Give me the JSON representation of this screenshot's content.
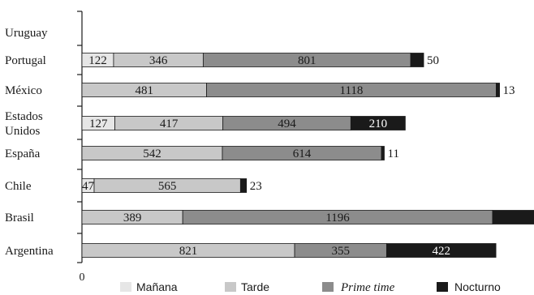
{
  "chart_data": {
    "type": "bar",
    "orientation": "horizontal",
    "stacked": true,
    "categories": [
      "Uruguay",
      "Portugal",
      "México",
      "Estados Unidos",
      "España",
      "Chile",
      "Brasil",
      "Argentina"
    ],
    "category_display": [
      [
        "Uruguay"
      ],
      [
        "Portugal"
      ],
      [
        "México"
      ],
      [
        "Estados",
        "Unidos"
      ],
      [
        "España"
      ],
      [
        "Chile"
      ],
      [
        "Brasil"
      ],
      [
        "Argentina"
      ]
    ],
    "series": [
      {
        "name": "Mañana",
        "color": "#e6e6e6",
        "values": [
          0,
          122,
          0,
          127,
          0,
          47,
          0,
          0
        ]
      },
      {
        "name": "Tarde",
        "color": "#c8c8c8",
        "values": [
          0,
          346,
          481,
          417,
          542,
          565,
          389,
          821
        ]
      },
      {
        "name": "Prime time",
        "color": "#8c8c8c",
        "values": [
          0,
          801,
          1118,
          494,
          614,
          0,
          1196,
          355
        ]
      },
      {
        "name": "Nocturno",
        "color": "#1a1a1a",
        "values": [
          0,
          50,
          13,
          210,
          11,
          23,
          160,
          422
        ]
      }
    ],
    "value_labels": [
      [
        "",
        "",
        "",
        ""
      ],
      [
        "122",
        "346",
        "801",
        "50"
      ],
      [
        "",
        "481",
        "1118",
        "13"
      ],
      [
        "127",
        "417",
        "494",
        "210"
      ],
      [
        "",
        "542",
        "614",
        "11"
      ],
      [
        "47",
        "565",
        "",
        "23"
      ],
      [
        "",
        "389",
        "1196",
        ""
      ],
      [
        "",
        "821",
        "355",
        "422"
      ]
    ],
    "x_tick_label": "0",
    "xlim": [
      0,
      1745
    ],
    "legend": {
      "position": "bottom",
      "italic_series": "Prime time"
    }
  }
}
